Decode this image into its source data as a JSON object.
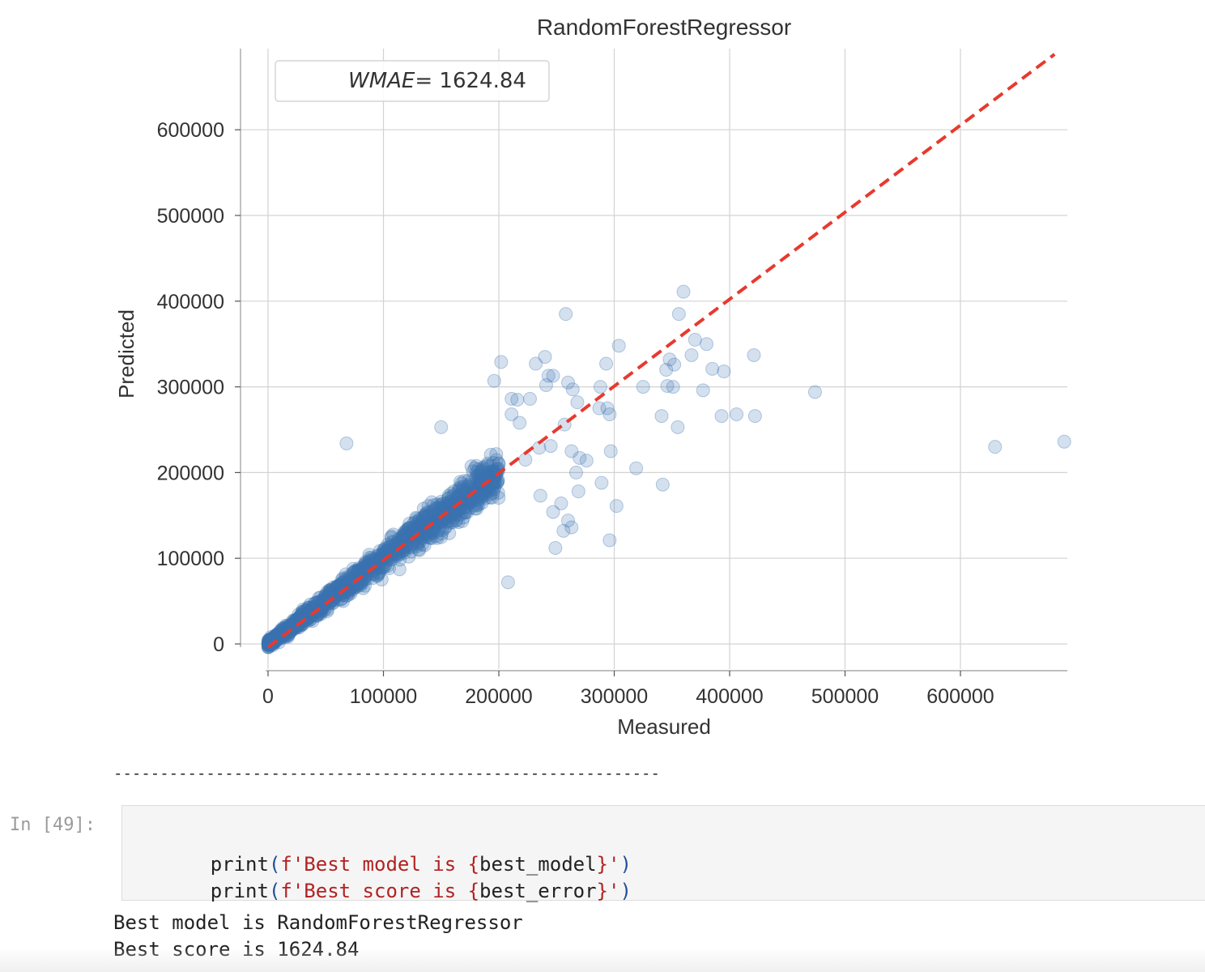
{
  "chart_data": {
    "type": "scatter",
    "title": "RandomForestRegressor",
    "xlabel": "Measured",
    "ylabel": "Predicted",
    "xlim": [
      -2000,
      690000
    ],
    "ylim": [
      -30000,
      695000
    ],
    "x_ticks": [
      0,
      100000,
      200000,
      300000,
      400000,
      500000,
      600000
    ],
    "x_tick_labels": [
      "0",
      "100000",
      "200000",
      "300000",
      "400000",
      "500000",
      "600000"
    ],
    "y_ticks": [
      0,
      100000,
      200000,
      300000,
      400000,
      500000,
      600000
    ],
    "y_tick_labels": [
      "0",
      "100000",
      "200000",
      "300000",
      "400000",
      "500000",
      "600000"
    ],
    "grid": true,
    "legend": {
      "text": "WMAE = 1624.84",
      "italic_part": "WMAE",
      "value_part": "= 1624.84",
      "placement": "top-left"
    },
    "reference_line": {
      "from": [
        0,
        0
      ],
      "to": [
        690000,
        690000
      ],
      "style": "dashed",
      "color": "#e8392f"
    },
    "point_color": "#3a73b1",
    "outlier_points": [
      [
        360000,
        411000
      ],
      [
        258000,
        385000
      ],
      [
        356000,
        385000
      ],
      [
        304000,
        348000
      ],
      [
        421000,
        337000
      ],
      [
        240000,
        335000
      ],
      [
        232000,
        327000
      ],
      [
        348000,
        332000
      ],
      [
        293000,
        327000
      ],
      [
        202000,
        329000
      ],
      [
        370000,
        355000
      ],
      [
        380000,
        350000
      ],
      [
        367000,
        337000
      ],
      [
        345000,
        320000
      ],
      [
        352000,
        326000
      ],
      [
        385000,
        321000
      ],
      [
        395000,
        318000
      ],
      [
        243000,
        313000
      ],
      [
        247000,
        313000
      ],
      [
        260000,
        305000
      ],
      [
        264000,
        297000
      ],
      [
        241000,
        302000
      ],
      [
        196000,
        307000
      ],
      [
        288000,
        300000
      ],
      [
        346000,
        301000
      ],
      [
        351000,
        300000
      ],
      [
        325000,
        300000
      ],
      [
        377000,
        296000
      ],
      [
        474000,
        294000
      ],
      [
        227000,
        286000
      ],
      [
        216000,
        285000
      ],
      [
        211000,
        286000
      ],
      [
        268000,
        282000
      ],
      [
        287000,
        275000
      ],
      [
        294000,
        275000
      ],
      [
        296000,
        268000
      ],
      [
        341000,
        266000
      ],
      [
        393000,
        266000
      ],
      [
        406000,
        268000
      ],
      [
        422000,
        266000
      ],
      [
        355000,
        253000
      ],
      [
        211000,
        268000
      ],
      [
        218000,
        258000
      ],
      [
        257000,
        256000
      ],
      [
        150000,
        253000
      ],
      [
        68000,
        234000
      ],
      [
        245000,
        231000
      ],
      [
        263000,
        225000
      ],
      [
        270000,
        217000
      ],
      [
        276000,
        214000
      ],
      [
        297000,
        225000
      ],
      [
        267000,
        200000
      ],
      [
        319000,
        205000
      ],
      [
        289000,
        188000
      ],
      [
        342000,
        186000
      ],
      [
        269000,
        178000
      ],
      [
        302000,
        161000
      ],
      [
        236000,
        173000
      ],
      [
        254000,
        164000
      ],
      [
        247000,
        154000
      ],
      [
        260000,
        144000
      ],
      [
        256000,
        132000
      ],
      [
        263000,
        136000
      ],
      [
        249000,
        112000
      ],
      [
        296000,
        121000
      ],
      [
        630000,
        230000
      ],
      [
        690000,
        236000
      ],
      [
        208000,
        72000
      ],
      [
        235000,
        229000
      ],
      [
        223000,
        215000
      ]
    ]
  },
  "separator": "-----------------------------------------------------------",
  "cell": {
    "prompt": "In [49]:",
    "lines": [
      {
        "fn": "print",
        "open": "(",
        "prefix": "f'Best model is ",
        "lbrace": "{",
        "var": "best_model",
        "rbrace": "}",
        "suffix": "'",
        "close": ")"
      },
      {
        "fn": "print",
        "open": "(",
        "prefix": "f'Best score is ",
        "lbrace": "{",
        "var": "best_error",
        "rbrace": "}",
        "suffix": "'",
        "close": ")"
      }
    ],
    "output": [
      "Best model is RandomForestRegressor",
      "Best score is 1624.84"
    ]
  }
}
